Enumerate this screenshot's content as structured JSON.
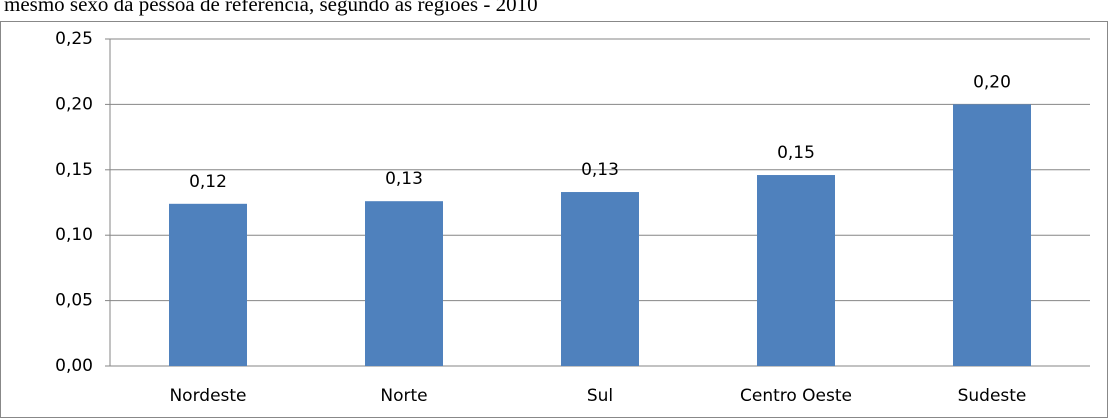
{
  "chart_data": {
    "type": "bar",
    "title": "mesmo sexo da pessoa de referência, segundo as regiões - 2010",
    "categories": [
      "Nordeste",
      "Norte",
      "Sul",
      "Centro Oeste",
      "Sudeste"
    ],
    "values": [
      0.124,
      0.126,
      0.133,
      0.146,
      0.2
    ],
    "value_labels": [
      "0,12",
      "0,13",
      "0,13",
      "0,15",
      "0,20"
    ],
    "color": "#4f81bd",
    "ylim": [
      0,
      0.25
    ],
    "yticks": [
      {
        "value": 0,
        "label": "0,00"
      },
      {
        "value": 0.05,
        "label": "0,05"
      },
      {
        "value": 0.1,
        "label": "0,10"
      },
      {
        "value": 0.15,
        "label": "0,15"
      },
      {
        "value": 0.2,
        "label": "0,20"
      },
      {
        "value": 0.25,
        "label": "0,25"
      }
    ],
    "grid": true
  }
}
